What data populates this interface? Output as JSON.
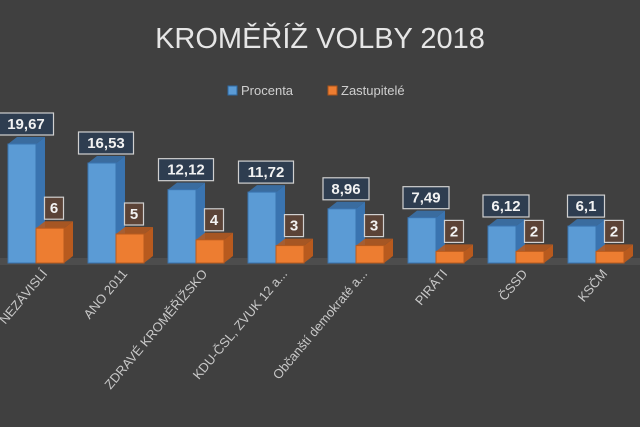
{
  "chart_data": {
    "type": "bar",
    "title": "KROMĚŘÍŽ VOLBY 2018",
    "categories": [
      "NEZÁVISLÍ",
      "ANO 2011",
      "ZDRAVÉ KROMĚŘÍŽSKO",
      "KDU-ČSL, ZVUK 12 a...",
      "Občanští demokraté a...",
      "PIRÁTI",
      "ČSSD",
      "KSČM"
    ],
    "series": [
      {
        "name": "Procenta",
        "color": "#5b9bd5",
        "values": [
          19.67,
          16.53,
          12.12,
          11.72,
          8.96,
          7.49,
          6.12,
          6.1
        ],
        "labels": [
          "19,67",
          "16,53",
          "12,12",
          "11,72",
          "8,96",
          "7,49",
          "6,12",
          "6,1"
        ]
      },
      {
        "name": "Zastupitelé",
        "color": "#ed7d31",
        "values": [
          6,
          5,
          4,
          3,
          3,
          2,
          2,
          2
        ],
        "labels": [
          "6",
          "5",
          "4",
          "3",
          "3",
          "2",
          "2",
          "2"
        ]
      }
    ],
    "xlabel": "",
    "ylabel": "",
    "grid": false,
    "legend": "top-center"
  }
}
